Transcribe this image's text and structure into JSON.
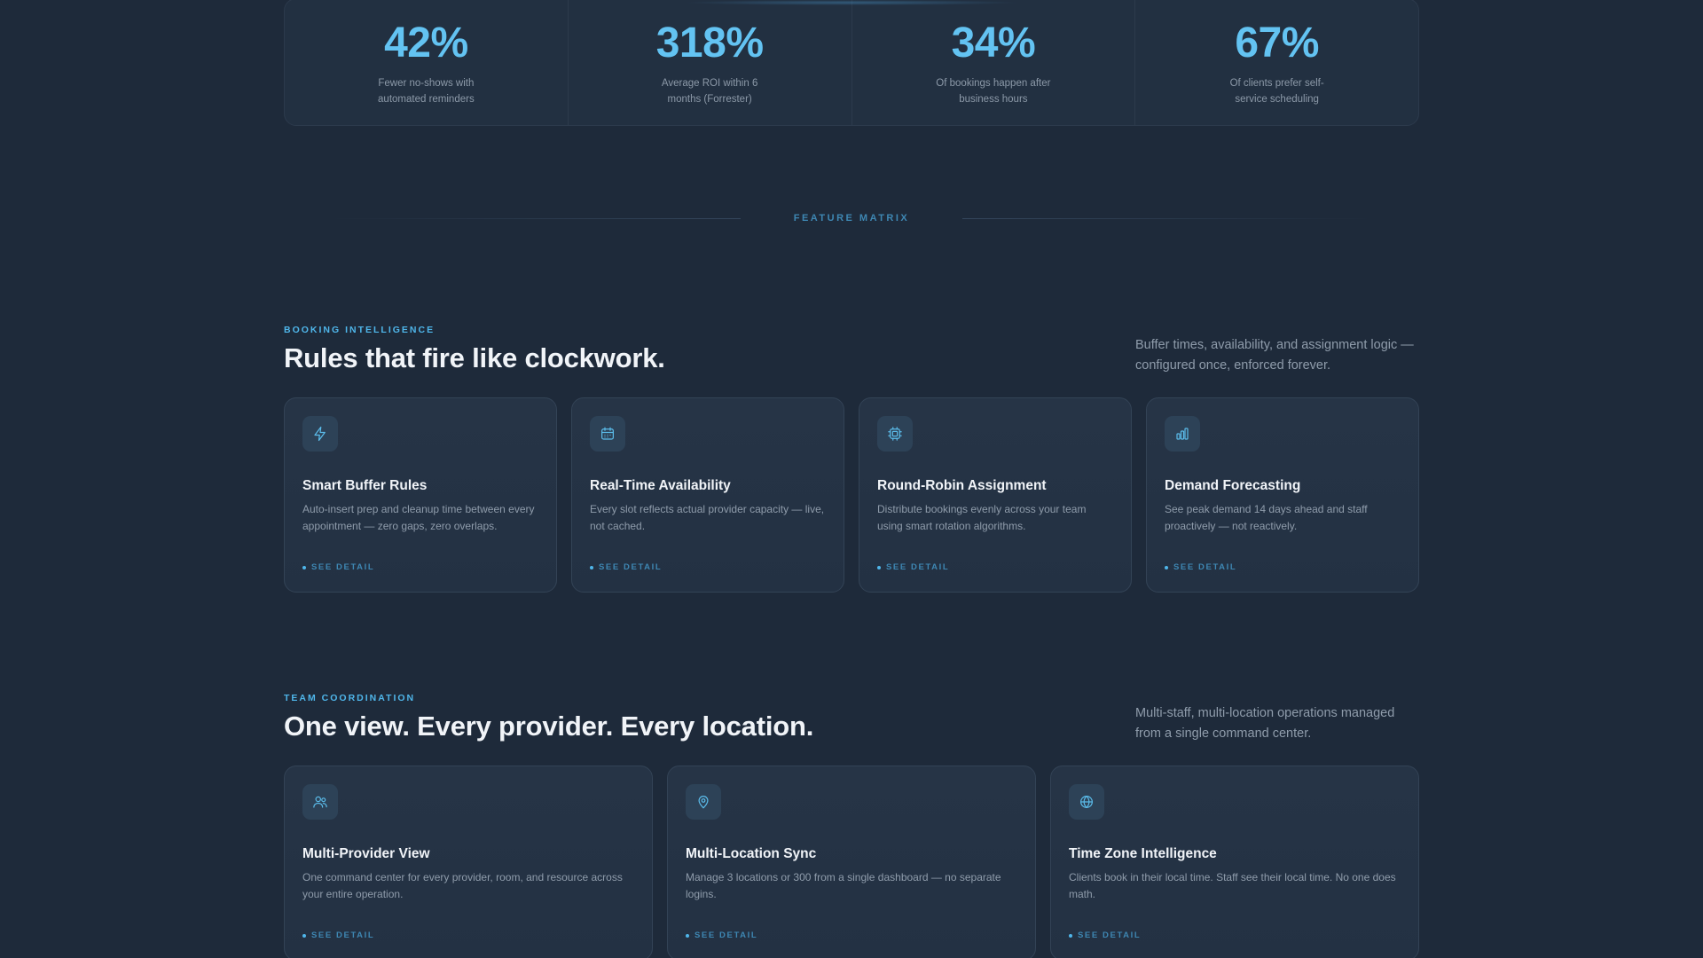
{
  "stats": [
    {
      "value": "42%",
      "desc": "Fewer no-shows with automated reminders"
    },
    {
      "value": "318%",
      "desc": "Average ROI within 6 months (Forrester)"
    },
    {
      "value": "34%",
      "desc": "Of bookings happen after business hours"
    },
    {
      "value": "67%",
      "desc": "Of clients prefer self-service scheduling"
    }
  ],
  "divider": {
    "label": "FEATURE MATRIX"
  },
  "booking": {
    "eyebrow": "BOOKING INTELLIGENCE",
    "heading": "Rules that fire like clockwork.",
    "aside": "Buffer times, availability, and assignment logic — configured once, enforced forever.",
    "cards": [
      {
        "icon": "lightning-icon",
        "title": "Smart Buffer Rules",
        "desc": "Auto-insert prep and cleanup time between every appointment — zero gaps, zero overlaps.",
        "link": "SEE DETAIL"
      },
      {
        "icon": "calendar-icon",
        "title": "Real-Time Availability",
        "desc": "Every slot reflects actual provider capacity — live, not cached.",
        "link": "SEE DETAIL"
      },
      {
        "icon": "chip-icon",
        "title": "Round-Robin Assignment",
        "desc": "Distribute bookings evenly across your team using smart rotation algorithms.",
        "link": "SEE DETAIL"
      },
      {
        "icon": "bar-chart-icon",
        "title": "Demand Forecasting",
        "desc": "See peak demand 14 days ahead and staff proactively — not reactively.",
        "link": "SEE DETAIL"
      }
    ]
  },
  "team": {
    "eyebrow": "TEAM COORDINATION",
    "heading": "One view. Every provider. Every location.",
    "aside": "Multi-staff, multi-location operations managed from a single command center.",
    "cards": [
      {
        "icon": "users-icon",
        "title": "Multi-Provider View",
        "desc": "One command center for every provider, room, and resource across your entire operation.",
        "link": "SEE DETAIL"
      },
      {
        "icon": "map-pin-icon",
        "title": "Multi-Location Sync",
        "desc": "Manage 3 locations or 300 from a single dashboard — no separate logins.",
        "link": "SEE DETAIL"
      },
      {
        "icon": "globe-icon",
        "title": "Time Zone Intelligence",
        "desc": "Clients book in their local time. Staff see their local time. No one does math.",
        "link": "SEE DETAIL"
      }
    ]
  },
  "colors": {
    "accent": "#63c3f2",
    "background": "#1e2a3a",
    "card": "#263446"
  }
}
